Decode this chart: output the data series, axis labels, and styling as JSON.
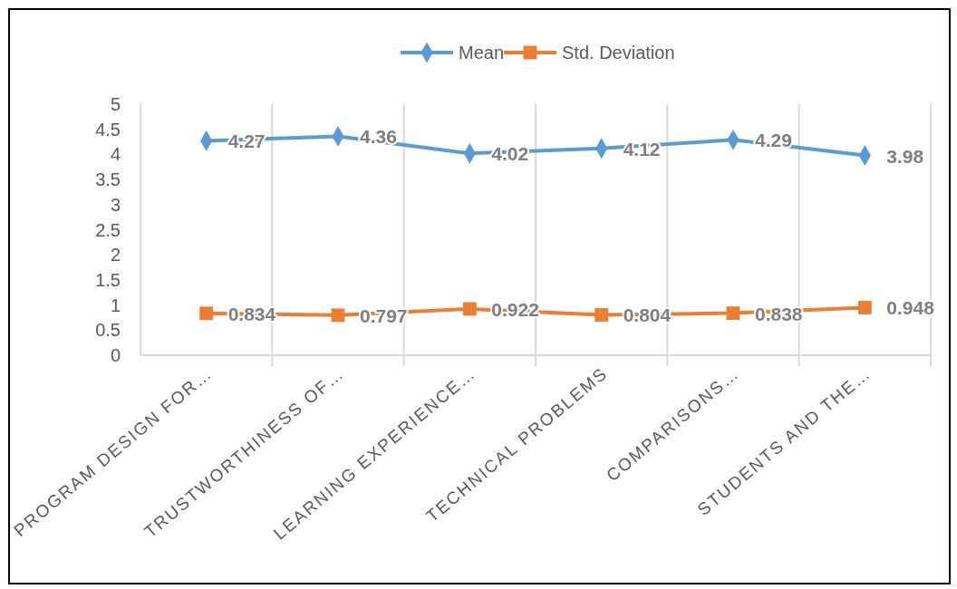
{
  "chart_data": {
    "type": "line",
    "categories": [
      "PROGRAM DESIGN FOR…",
      "TRUSTWORTHINESS OF…",
      "LEARNING EXPERIENCE…",
      "TECHNICAL PROBLEMS",
      "COMPARISONS…",
      "STUDENTS AND THE…"
    ],
    "series": [
      {
        "name": "Mean",
        "color": "#5b9bd5",
        "marker": "diamond",
        "values": [
          4.27,
          4.36,
          4.02,
          4.12,
          4.29,
          3.98
        ]
      },
      {
        "name": "Std. Deviation",
        "color": "#ed7d31",
        "marker": "square",
        "values": [
          0.834,
          0.797,
          0.922,
          0.804,
          0.838,
          0.948
        ]
      }
    ],
    "ylim": [
      0,
      5
    ],
    "yticks": [
      0,
      0.5,
      1,
      1.5,
      2,
      2.5,
      3,
      3.5,
      4,
      4.5,
      5
    ],
    "grid": "x",
    "legend": "top",
    "data_labels": true,
    "line_style": "solid"
  }
}
